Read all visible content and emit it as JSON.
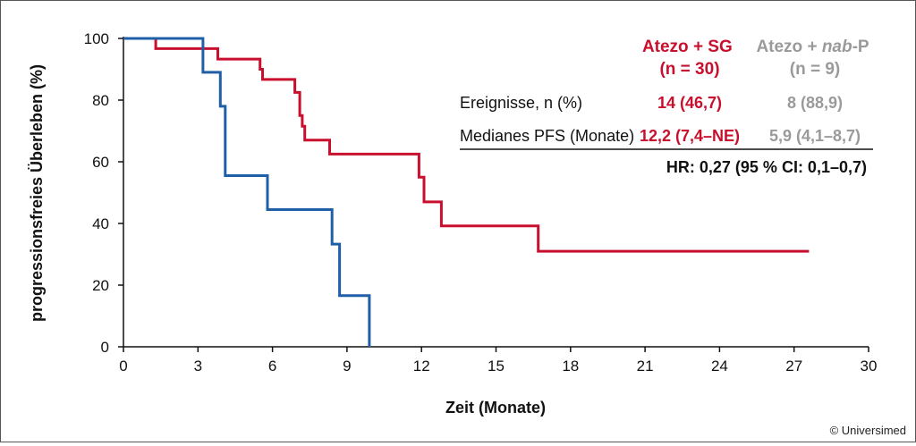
{
  "chart_data": {
    "type": "line",
    "xlabel": "Zeit (Monate)",
    "ylabel": "progressionsfreies Überleben (%)",
    "xlim": [
      0,
      30
    ],
    "ylim": [
      0,
      100
    ],
    "xticks": [
      "0",
      "3",
      "6",
      "9",
      "12",
      "15",
      "18",
      "21",
      "24",
      "27",
      "30"
    ],
    "yticks": [
      "0",
      "20",
      "40",
      "60",
      "80",
      "100"
    ],
    "grid": false,
    "series": [
      {
        "name": "Atezo + SG",
        "color": "#c8102e",
        "steps": [
          [
            0,
            100
          ],
          [
            1.3,
            100
          ],
          [
            1.3,
            96.7
          ],
          [
            3.8,
            96.7
          ],
          [
            3.8,
            93.3
          ],
          [
            5.5,
            93.3
          ],
          [
            5.5,
            90
          ],
          [
            5.6,
            90
          ],
          [
            5.6,
            86.7
          ],
          [
            5.6,
            86.7
          ],
          [
            6.9,
            86.7
          ],
          [
            6.9,
            82.5
          ],
          [
            7.1,
            82.5
          ],
          [
            7.1,
            75
          ],
          [
            7.2,
            75
          ],
          [
            7.2,
            71.5
          ],
          [
            7.3,
            71.5
          ],
          [
            7.3,
            67
          ],
          [
            8.3,
            67
          ],
          [
            8.3,
            62.5
          ],
          [
            11.9,
            62.5
          ],
          [
            11.9,
            55
          ],
          [
            12.1,
            55
          ],
          [
            12.1,
            47
          ],
          [
            12.8,
            47
          ],
          [
            12.8,
            39.2
          ],
          [
            16.7,
            39.2
          ],
          [
            16.7,
            31
          ],
          [
            27.6,
            31
          ]
        ]
      },
      {
        "name": "Atezo + nab-P",
        "color": "#1f5fa8",
        "steps": [
          [
            0,
            100
          ],
          [
            3.2,
            100
          ],
          [
            3.2,
            89
          ],
          [
            3.9,
            89
          ],
          [
            3.9,
            78
          ],
          [
            4.1,
            78
          ],
          [
            4.1,
            55.5
          ],
          [
            5.8,
            55.5
          ],
          [
            5.8,
            44.5
          ],
          [
            8.4,
            44.5
          ],
          [
            8.4,
            33.3
          ],
          [
            8.7,
            33.3
          ],
          [
            8.7,
            16.6
          ],
          [
            9.9,
            16.6
          ],
          [
            9.9,
            0
          ]
        ]
      }
    ],
    "table": {
      "header_series1": [
        "Atezo + SG",
        "(n = 30)"
      ],
      "header_series2_pre": "Atezo + ",
      "header_series2_italic": "nab",
      "header_series2_post": "-P",
      "header_series2_line2": "(n = 9)",
      "rows": [
        {
          "label": "Ereignisse, n (%)",
          "s1": "14 (46,7)",
          "s2": "8 (88,9)"
        },
        {
          "label": "Medianes PFS (Monate)",
          "s1": "12,2 (7,4–NE)",
          "s2": "5,9 (4,1–8,7)"
        }
      ],
      "hr": "HR: 0,27 (95 % CI: 0,1–0,7)"
    },
    "copyright": "© Universimed"
  },
  "colors": {
    "series1": "#c8102e",
    "series2_line": "#1f5fa8",
    "series2_text": "#9a9a9a",
    "axis": "#111111"
  }
}
